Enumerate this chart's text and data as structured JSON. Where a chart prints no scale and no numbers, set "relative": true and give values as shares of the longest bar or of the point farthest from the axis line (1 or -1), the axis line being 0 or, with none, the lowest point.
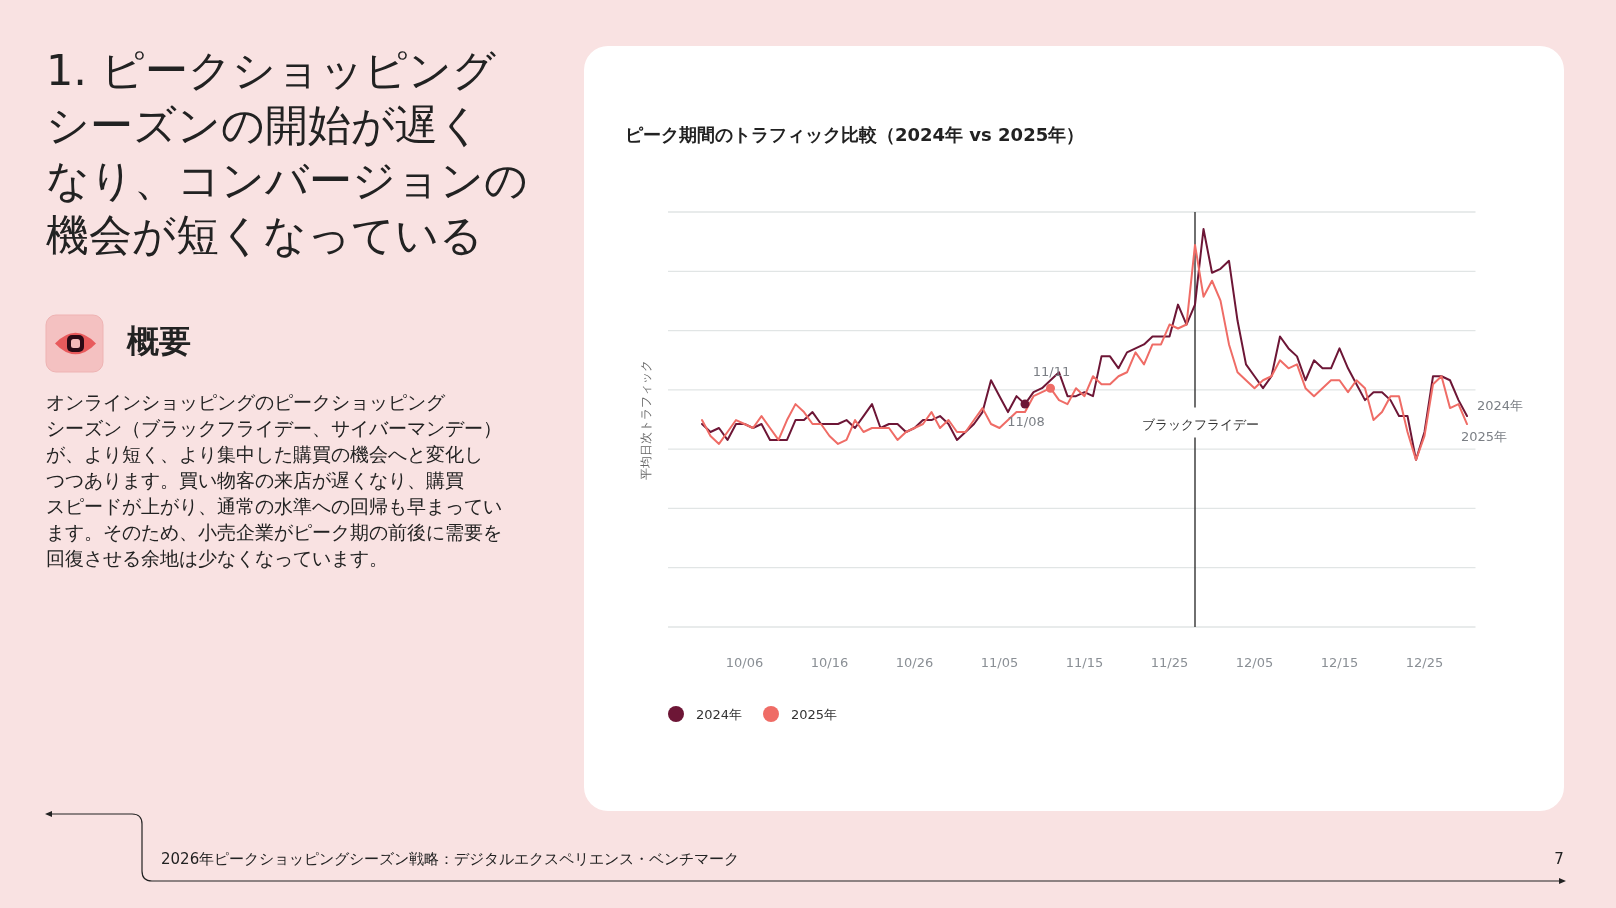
{
  "chart_data": {
    "type": "line",
    "title": "ピーク期間のトラフィック比較（2024年 vs 2025年）",
    "ylabel": "平均日次トラフィック",
    "relative": true,
    "x": [
      "--10-01",
      "--10-02",
      "--10-03",
      "--10-04",
      "--10-05",
      "--10-06",
      "--10-07",
      "--10-08",
      "--10-09",
      "--10-10",
      "--10-11",
      "--10-12",
      "--10-13",
      "--10-14",
      "--10-15",
      "--10-16",
      "--10-17",
      "--10-18",
      "--10-19",
      "--10-20",
      "--10-21",
      "--10-22",
      "--10-23",
      "--10-24",
      "--10-25",
      "--10-26",
      "--10-27",
      "--10-28",
      "--10-29",
      "--10-30",
      "--10-31",
      "--11-01",
      "--11-02",
      "--11-03",
      "--11-04",
      "--11-05",
      "--11-06",
      "--11-07",
      "--11-08",
      "--11-09",
      "--11-10",
      "--11-11",
      "--11-12",
      "--11-13",
      "--11-14",
      "--11-15",
      "--11-16",
      "--11-17",
      "--11-18",
      "--11-19",
      "--11-20",
      "--11-21",
      "--11-22",
      "--11-23",
      "--11-24",
      "--11-25",
      "--11-26",
      "--11-27",
      "--11-28",
      "--11-29",
      "--11-30",
      "--12-01",
      "--12-02",
      "--12-03",
      "--12-04",
      "--12-05",
      "--12-06",
      "--12-07",
      "--12-08",
      "--12-09",
      "--12-10",
      "--12-11",
      "--12-12",
      "--12-13",
      "--12-14",
      "--12-15",
      "--12-16",
      "--12-17",
      "--12-18",
      "--12-19",
      "--12-20",
      "--12-21",
      "--12-22",
      "--12-23",
      "--12-24",
      "--12-25",
      "--12-26",
      "--12-27",
      "--12-28",
      "--12-29",
      "--12-30"
    ],
    "series": [
      {
        "name": "2024年",
        "color": "#6d1636",
        "values": [
          0.51,
          0.49,
          0.5,
          0.47,
          0.51,
          0.51,
          0.5,
          0.51,
          0.47,
          0.47,
          0.47,
          0.52,
          0.52,
          0.54,
          0.51,
          0.51,
          0.51,
          0.52,
          0.5,
          0.53,
          0.56,
          0.5,
          0.51,
          0.51,
          0.49,
          0.5,
          0.52,
          0.52,
          0.53,
          0.51,
          0.47,
          0.49,
          0.51,
          0.54,
          0.62,
          0.58,
          0.54,
          0.58,
          0.56,
          0.59,
          0.6,
          0.62,
          0.64,
          0.58,
          0.58,
          0.59,
          0.58,
          0.68,
          0.68,
          0.65,
          0.69,
          0.7,
          0.71,
          0.73,
          0.73,
          0.73,
          0.81,
          0.76,
          0.81,
          1.0,
          0.89,
          0.9,
          0.92,
          0.77,
          0.66,
          0.63,
          0.6,
          0.63,
          0.73,
          0.7,
          0.68,
          0.62,
          0.67,
          0.65,
          0.65,
          0.7,
          0.65,
          0.61,
          0.57,
          0.59,
          0.59,
          0.57,
          0.53,
          0.53,
          0.42,
          0.49,
          0.63,
          0.63,
          0.62,
          0.57,
          0.53
        ]
      },
      {
        "name": "2025年",
        "color": "#ef6c66",
        "values": [
          0.52,
          0.48,
          0.46,
          0.49,
          0.52,
          0.51,
          0.5,
          0.53,
          0.5,
          0.47,
          0.52,
          0.56,
          0.54,
          0.51,
          0.51,
          0.48,
          0.46,
          0.47,
          0.52,
          0.49,
          0.5,
          0.5,
          0.5,
          0.47,
          0.49,
          0.5,
          0.51,
          0.54,
          0.5,
          0.52,
          0.49,
          0.49,
          0.52,
          0.55,
          0.51,
          0.5,
          0.52,
          0.54,
          0.54,
          0.58,
          0.59,
          0.6,
          0.57,
          0.56,
          0.6,
          0.58,
          0.63,
          0.61,
          0.61,
          0.63,
          0.64,
          0.69,
          0.66,
          0.71,
          0.71,
          0.76,
          0.75,
          0.76,
          0.96,
          0.83,
          0.87,
          0.82,
          0.71,
          0.64,
          0.62,
          0.6,
          0.62,
          0.63,
          0.67,
          0.65,
          0.66,
          0.6,
          0.58,
          0.6,
          0.62,
          0.62,
          0.59,
          0.62,
          0.6,
          0.52,
          0.54,
          0.58,
          0.58,
          0.49,
          0.42,
          0.48,
          0.61,
          0.63,
          0.55,
          0.56,
          0.51
        ]
      }
    ],
    "xlim": [
      "--09-27",
      "--12-31"
    ],
    "xticks": [
      {
        "value": "--10-06",
        "label": "10/06"
      },
      {
        "value": "--10-16",
        "label": "10/16"
      },
      {
        "value": "--10-26",
        "label": "10/26"
      },
      {
        "value": "--11-05",
        "label": "11/05"
      },
      {
        "value": "--11-15",
        "label": "11/15"
      },
      {
        "value": "--11-25",
        "label": "11/25"
      },
      {
        "value": "--12-05",
        "label": "12/05"
      },
      {
        "value": "--12-15",
        "label": "12/15"
      },
      {
        "value": "--12-25",
        "label": "12/25"
      }
    ],
    "grid": "y",
    "legend": "bottom",
    "ref_lines": [
      {
        "axis": "x",
        "value": "--11-28",
        "label": "ブラックフライデー"
      }
    ],
    "annotations": [
      "1. ピークショッピングシーズンの開始が遅くなり、コンバージョンの機会が短くなっている",
      "概要",
      "オンラインショッピングのピークショッピングシーズン（ブラックフライデー、サイバーマンデー）が、より短く、より集中した購買の機会へと変化しつつあります。買い物客の来店が遅くなり、購買スピードが上がり、通常の水準への回帰も早まっています。そのため、小売企業がピーク期の前後に需要を回復させる余地は少なくなっています。",
      "2026年ピークショッピングシーズン戦略：デジタルエクスペリエンス・ベンチマーク",
      "7",
      {
        "text": "11/08",
        "x": "--11-08",
        "y": 0.56
      },
      {
        "text": "11/11",
        "x": "--11-11",
        "y": 0.6
      }
    ]
  }
}
